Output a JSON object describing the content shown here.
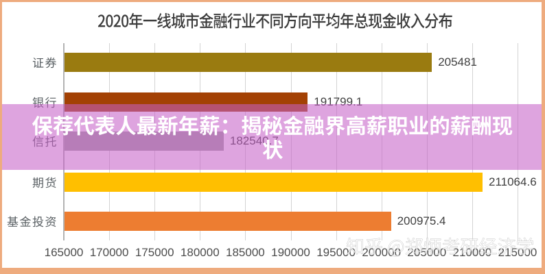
{
  "frame": {
    "color": "#eeab7e"
  },
  "chart_data": {
    "type": "bar",
    "orientation": "horizontal",
    "title": "2020年一线城市金融行业不同方向平均年总现金收入分布",
    "categories": [
      "证券",
      "银行",
      "信托",
      "期货",
      "基金投资"
    ],
    "values": [
      205481,
      191799.1,
      182540.7,
      211064.6,
      200975.4
    ],
    "value_labels": [
      "205481",
      "191799.1",
      "182540.7",
      "211064.6",
      "200975.4"
    ],
    "bar_colors": [
      "#9a7b10",
      "#a34104",
      "#a5a5a5",
      "#ffbf00",
      "#ed7d31"
    ],
    "xlabel": "",
    "ylabel": "",
    "xlim": [
      165000,
      215000
    ],
    "x_tick_step": 5000,
    "x_ticks": [
      "165000",
      "170000",
      "175000",
      "180000",
      "185000",
      "190000",
      "195000",
      "200000",
      "205000",
      "210000",
      "215000"
    ],
    "grid": true,
    "background": "#ffffff"
  },
  "overlay": {
    "headline": "保荐代表人最新年薪：揭秘金融界高薪职业的薪酬现状",
    "band_color": "rgba(197,95,199,0.57)",
    "text_color": "#ffffff"
  },
  "watermark": {
    "text": "知乎 @郑炳考研经济学"
  }
}
